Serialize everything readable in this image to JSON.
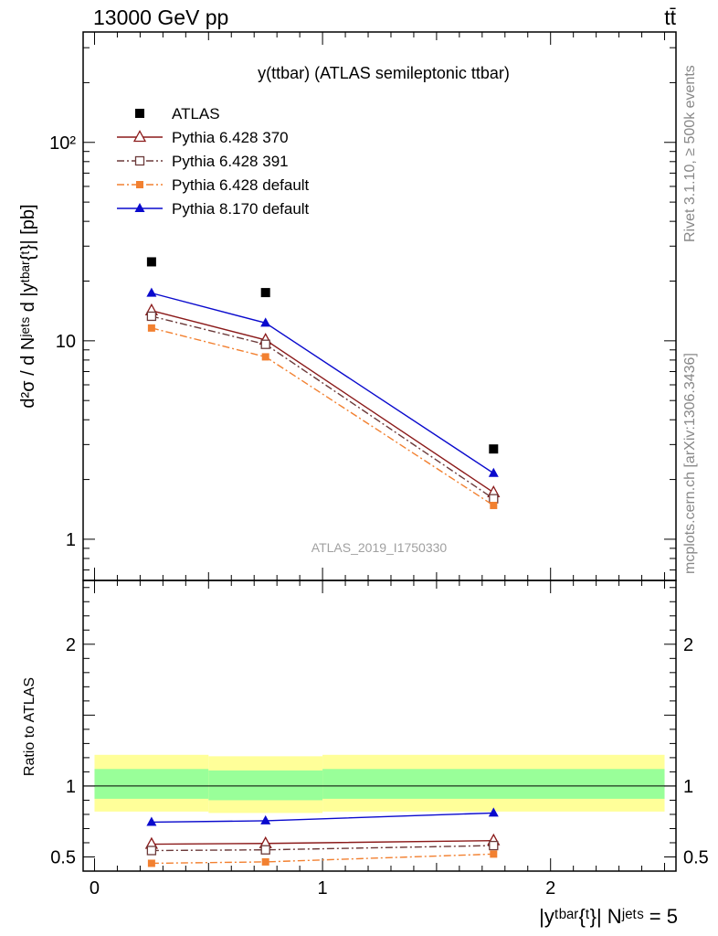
{
  "header": {
    "left": "13000 GeV pp",
    "right": "tt̄"
  },
  "side_labels": {
    "rivet": "Rivet 3.1.10, ≥ 500k events",
    "mcplots": "mcplots.cern.ch [arXiv:1306.3436]"
  },
  "analysis_id": "ATLAS_2019_I1750330",
  "colors": {
    "data": "#000000",
    "p6_370": "#8b1a1a",
    "p6_391": "#6b3a3a",
    "p6_default": "#f28030",
    "p8_default": "#0a0acd",
    "band_inner": "#99ff99",
    "band_outer": "#ffff99"
  },
  "chart_data": [
    {
      "type": "line",
      "title": "y(ttbar) (ATLAS semileptonic ttbar)",
      "ylabel": "d²σ / d Nʲᵉᵗˢ d |yᵗᵇᵃʳ{ᵗ}| [pb]",
      "yscale": "log",
      "xlim": [
        -0.05,
        2.55
      ],
      "ylim": [
        0.62,
        360
      ],
      "ytick_labels": [
        {
          "value": 1,
          "label": "1"
        },
        {
          "value": 10,
          "label": "10"
        },
        {
          "value": 100,
          "label": "10²"
        }
      ],
      "legend_position": "top-left",
      "x": [
        0.25,
        0.75,
        1.75
      ],
      "series": [
        {
          "name": "ATLAS",
          "key": "data",
          "marker": "square",
          "line": "none",
          "values": [
            25,
            17.5,
            2.85
          ]
        },
        {
          "name": "Pythia 6.428 370",
          "key": "p6_370",
          "marker": "triangle-open",
          "line": "solid",
          "values": [
            14.2,
            10.1,
            1.72
          ]
        },
        {
          "name": "Pythia 6.428 391",
          "key": "p6_391",
          "marker": "square-open",
          "line": "dashdot",
          "values": [
            13.3,
            9.6,
            1.6
          ]
        },
        {
          "name": "Pythia 6.428 default",
          "key": "p6_default",
          "marker": "square-small",
          "line": "dashdot",
          "values": [
            11.6,
            8.3,
            1.48
          ]
        },
        {
          "name": "Pythia 8.170 default",
          "key": "p8_default",
          "marker": "triangle",
          "line": "solid",
          "values": [
            17.4,
            12.3,
            2.15
          ]
        }
      ]
    },
    {
      "type": "line",
      "ylabel": "Ratio to ATLAS",
      "xlabel": "|yᵗᵇᵃʳ{ᵗ}| Nʲᵉᵗˢ = 5",
      "xlim": [
        -0.05,
        2.55
      ],
      "ylim": [
        0.4,
        2.45
      ],
      "xtick_labels": [
        {
          "value": 0,
          "label": "0"
        },
        {
          "value": 1,
          "label": "1"
        },
        {
          "value": 2,
          "label": "2"
        }
      ],
      "ytick_labels": [
        {
          "value": 0.5,
          "label": "0.5"
        },
        {
          "value": 1,
          "label": "1"
        },
        {
          "value": 2,
          "label": "2"
        }
      ],
      "reference_line": 1,
      "bands": {
        "x_edges": [
          0.0,
          0.5,
          1.0,
          2.5
        ],
        "inner": [
          [
            0.91,
            1.12
          ],
          [
            0.9,
            1.11
          ],
          [
            0.91,
            1.12
          ]
        ],
        "outer": [
          [
            0.82,
            1.22
          ],
          [
            0.81,
            1.21
          ],
          [
            0.82,
            1.22
          ]
        ]
      },
      "x": [
        0.25,
        0.75,
        1.75
      ],
      "series": [
        {
          "name": "Pythia 6.428 370",
          "key": "p6_370",
          "marker": "triangle-open",
          "line": "solid",
          "values": [
            0.59,
            0.595,
            0.615
          ]
        },
        {
          "name": "Pythia 6.428 391",
          "key": "p6_391",
          "marker": "square-open",
          "line": "dashdot",
          "values": [
            0.545,
            0.55,
            0.58
          ]
        },
        {
          "name": "Pythia 6.428 default",
          "key": "p6_default",
          "marker": "square-small",
          "line": "dashdot",
          "values": [
            0.455,
            0.465,
            0.52
          ]
        },
        {
          "name": "Pythia 8.170 default",
          "key": "p8_default",
          "marker": "triangle",
          "line": "solid",
          "values": [
            0.745,
            0.755,
            0.81
          ]
        }
      ]
    }
  ]
}
